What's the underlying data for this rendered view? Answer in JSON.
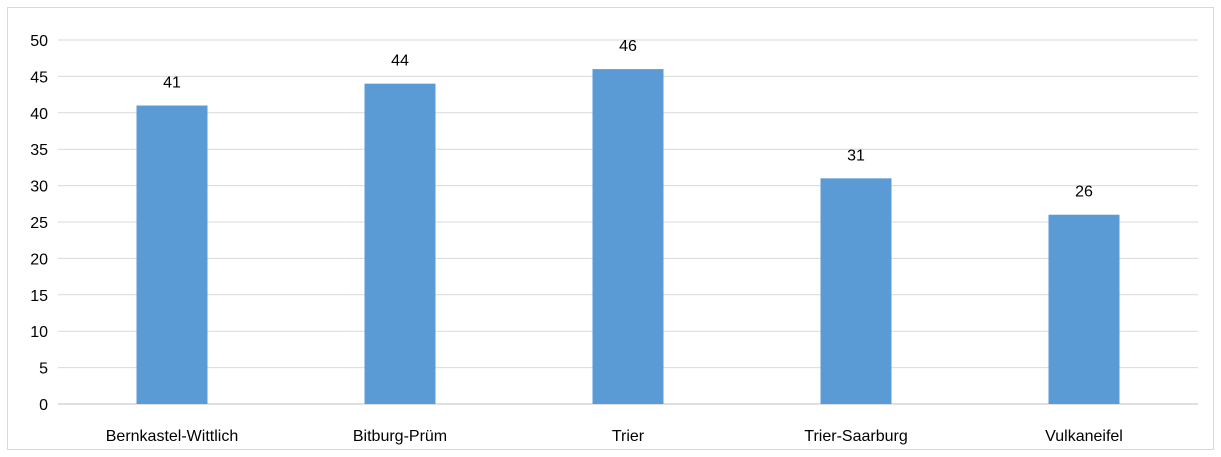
{
  "chart_data": {
    "type": "bar",
    "categories": [
      "Bernkastel-Wittlich",
      "Bitburg-Prüm",
      "Trier",
      "Trier-Saarburg",
      "Vulkaneifel"
    ],
    "values": [
      41,
      44,
      46,
      31,
      26
    ],
    "ylim": [
      0,
      50
    ],
    "yticks": [
      0,
      5,
      10,
      15,
      20,
      25,
      30,
      35,
      40,
      45,
      50
    ],
    "grid": true,
    "data_labels": true,
    "legend": "none",
    "bar_color": "#5b9bd5",
    "grid_color": "#d9d9d9",
    "axis_color": "#bfbfbf"
  }
}
